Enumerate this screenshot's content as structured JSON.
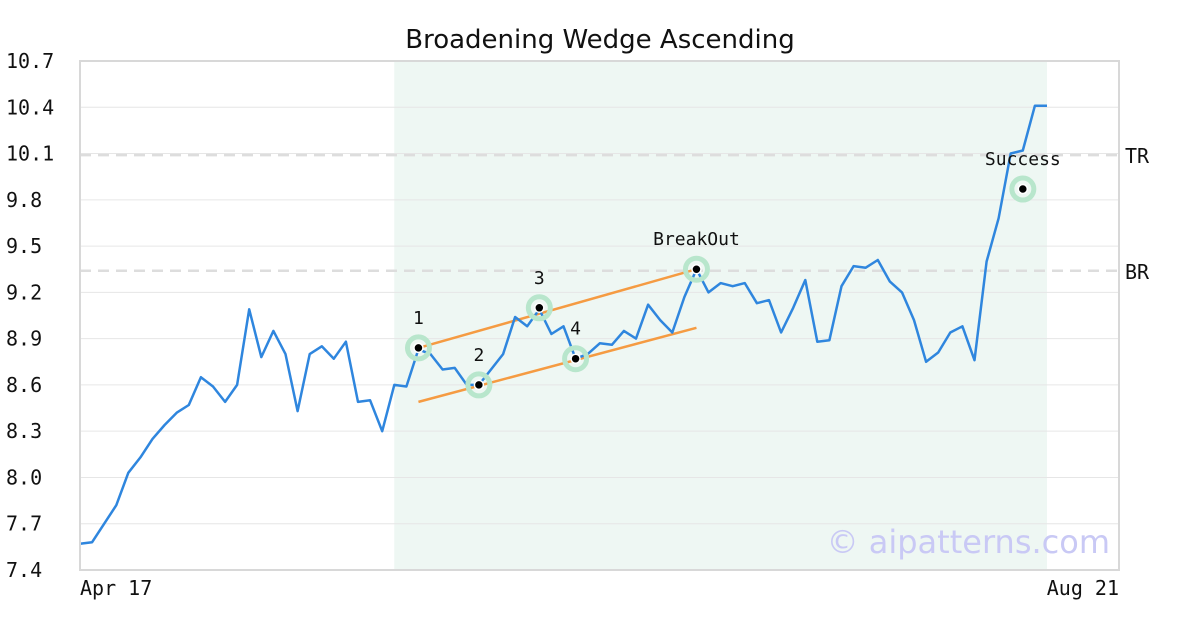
{
  "chart_data": {
    "type": "line",
    "title": "Broadening Wedge Ascending",
    "watermark": "© aipatterns.com",
    "ylim": [
      7.4,
      10.7
    ],
    "yticks": [
      7.4,
      7.7,
      8.0,
      8.3,
      8.6,
      8.9,
      9.2,
      9.5,
      9.8,
      10.1,
      10.4,
      10.7
    ],
    "ytick_labels": [
      "7.4",
      "7.7",
      "8.0",
      "8.3",
      "8.6",
      "8.9",
      "9.2",
      "9.5",
      "9.8",
      "10.1",
      "10.4",
      "10.7"
    ],
    "xtick_labels": [
      "Apr 17",
      "Aug 21"
    ],
    "grid": true,
    "pattern_region": [
      26,
      80
    ],
    "series": [
      {
        "color": "#2f86de",
        "values": [
          7.57,
          7.58,
          7.7,
          7.82,
          8.03,
          8.13,
          8.25,
          8.34,
          8.42,
          8.47,
          8.65,
          8.59,
          8.49,
          8.6,
          9.09,
          8.78,
          8.95,
          8.8,
          8.43,
          8.8,
          8.85,
          8.77,
          8.88,
          8.49,
          8.5,
          8.3,
          8.6,
          8.59,
          8.83,
          8.8,
          8.7,
          8.71,
          8.6,
          8.6,
          8.7,
          8.8,
          9.04,
          8.98,
          9.09,
          8.93,
          8.98,
          8.77,
          8.8,
          8.87,
          8.86,
          8.95,
          8.9,
          9.12,
          9.02,
          8.94,
          9.17,
          9.35,
          9.2,
          9.26,
          9.24,
          9.26,
          9.13,
          9.15,
          8.94,
          9.1,
          9.28,
          8.88,
          8.89,
          9.24,
          9.37,
          9.36,
          9.41,
          9.27,
          9.2,
          9.02,
          8.75,
          8.81,
          8.94,
          8.98,
          8.76,
          9.4,
          9.68,
          10.1,
          10.12,
          10.41,
          10.41
        ]
      }
    ],
    "levels": [
      {
        "label": "TR",
        "value": 10.09,
        "color": "#dddddd"
      },
      {
        "label": "BR",
        "value": 9.34,
        "color": "#dddddd"
      }
    ],
    "trendlines": [
      {
        "color": "#f59b42",
        "from": [
          28,
          8.84
        ],
        "to": [
          51,
          9.35
        ]
      },
      {
        "color": "#f59b42",
        "from": [
          28,
          8.49
        ],
        "to": [
          51,
          8.97
        ]
      }
    ],
    "points": [
      {
        "label": "1",
        "x": 28,
        "y": 8.84
      },
      {
        "label": "2",
        "x": 33,
        "y": 8.6
      },
      {
        "label": "3",
        "x": 38,
        "y": 9.1
      },
      {
        "label": "4",
        "x": 41,
        "y": 8.77
      },
      {
        "label": "BreakOut",
        "x": 51,
        "y": 9.35
      },
      {
        "label": "Success",
        "x": 78,
        "y": 9.87
      }
    ]
  }
}
